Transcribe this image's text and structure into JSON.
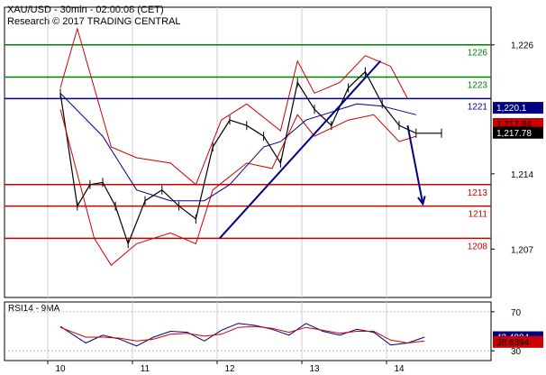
{
  "header": {
    "title": "XAU/USD - 30min - 02:00:08 (CET)",
    "subtitle": "Research © 2017 TRADING CENTRAL"
  },
  "colors": {
    "resistance": "#008000",
    "pivot": "#000080",
    "support": "#cc0000",
    "bands": "#cc0000",
    "ma": "#000080",
    "price": "#000000",
    "arrow": "#000080",
    "tag_current_bg": "#000000",
    "tag_pivot_bg": "#000080",
    "tag_sub_bg": "#cc0000"
  },
  "chart_data": [
    {
      "type": "line",
      "title": "XAU/USD - 30min",
      "x_ticks": [
        "10",
        "11",
        "12",
        "13",
        "14"
      ],
      "y_ticks": [
        1207,
        1214,
        1226
      ],
      "ylim": [
        1202.5,
        1229.5
      ],
      "levels": [
        {
          "label": "1226",
          "value": 1226,
          "kind": "resistance"
        },
        {
          "label": "1223",
          "value": 1223,
          "kind": "resistance"
        },
        {
          "label": "1221",
          "value": 1221,
          "kind": "pivot"
        },
        {
          "label": "1213",
          "value": 1213,
          "kind": "support"
        },
        {
          "label": "1211",
          "value": 1211,
          "kind": "support"
        },
        {
          "label": "1208",
          "value": 1208,
          "kind": "support"
        }
      ],
      "price_tags": [
        {
          "label": "1,220.1",
          "value": 1220.1,
          "style": "pivot"
        },
        {
          "label": "1,217.84",
          "value": 1218.6,
          "style": "sub"
        },
        {
          "label": "1,217.78",
          "value": 1217.78,
          "style": "current"
        }
      ],
      "series": [
        {
          "kind": "price",
          "x": [
            0.0,
            0.2,
            0.35,
            0.5,
            0.65,
            0.8,
            1.0,
            1.2,
            1.4,
            1.6,
            1.8,
            2.0,
            2.2,
            2.4,
            2.6,
            2.8,
            3.0,
            3.2,
            3.4,
            3.6,
            3.8,
            4.0,
            4.2,
            4.5
          ],
          "values": [
            1221.5,
            1211.0,
            1213.0,
            1213.2,
            1211.0,
            1207.5,
            1211.5,
            1212.5,
            1211.0,
            1209.8,
            1216.5,
            1219.0,
            1218.5,
            1217.5,
            1215.0,
            1222.5,
            1220.0,
            1218.5,
            1222.0,
            1223.5,
            1220.5,
            1218.5,
            1217.78,
            1217.78
          ]
        },
        {
          "kind": "upper_band",
          "x": [
            0.0,
            0.2,
            0.6,
            0.9,
            1.3,
            1.6,
            1.9,
            2.2,
            2.6,
            2.8,
            3.0,
            3.3,
            3.6,
            3.9,
            4.1
          ],
          "values": [
            1222.0,
            1227.5,
            1216.5,
            1215.5,
            1215.0,
            1213.0,
            1219.0,
            1220.5,
            1218.0,
            1224.5,
            1221.5,
            1222.5,
            1225.0,
            1224.0,
            1221.0
          ]
        },
        {
          "kind": "lower_band",
          "x": [
            0.0,
            0.4,
            0.6,
            0.9,
            1.3,
            1.6,
            1.8,
            2.2,
            2.5,
            2.8,
            3.0,
            3.4,
            3.7,
            4.0,
            4.2
          ],
          "values": [
            1220.0,
            1208.0,
            1205.5,
            1207.5,
            1208.5,
            1207.5,
            1212.5,
            1215.0,
            1214.5,
            1219.5,
            1217.5,
            1219.0,
            1219.5,
            1217.0,
            1217.5
          ]
        },
        {
          "kind": "moving_average",
          "x": [
            0.0,
            0.5,
            0.9,
            1.3,
            1.7,
            2.0,
            2.4,
            2.6,
            2.9,
            3.1,
            3.5,
            3.8,
            4.2
          ],
          "values": [
            1221.5,
            1217.5,
            1212.5,
            1211.5,
            1211.5,
            1213.0,
            1216.5,
            1217.0,
            1219.0,
            1219.5,
            1220.5,
            1220.3,
            1219.5
          ]
        }
      ],
      "annotations": [
        {
          "kind": "trendline",
          "x": [
            1.88,
            3.78
          ],
          "values": [
            1208.0,
            1224.5
          ]
        },
        {
          "kind": "arrow",
          "x": [
            4.1,
            4.28
          ],
          "values": [
            1218.5,
            1211.2
          ]
        }
      ]
    },
    {
      "type": "line",
      "title": "RSI14 - 9MA",
      "y_ticks": [
        70,
        30
      ],
      "ylim": [
        20,
        80
      ],
      "price_tags": [
        {
          "label": "43.4984",
          "value": 43.4984,
          "style": "pivot"
        },
        {
          "label": "38.6394",
          "value": 38.6394,
          "style": "sub"
        }
      ],
      "series": [
        {
          "kind": "rsi",
          "x": [
            0.0,
            0.3,
            0.5,
            0.7,
            0.9,
            1.1,
            1.3,
            1.5,
            1.7,
            1.9,
            2.1,
            2.3,
            2.5,
            2.7,
            2.9,
            3.1,
            3.3,
            3.5,
            3.7,
            3.9,
            4.1,
            4.3
          ],
          "values": [
            55,
            38,
            46,
            42,
            35,
            44,
            50,
            49,
            40,
            51,
            58,
            56,
            52,
            46,
            58,
            50,
            46,
            52,
            49,
            36,
            38,
            44
          ]
        },
        {
          "kind": "rsi_ma",
          "x": [
            0.0,
            0.3,
            0.5,
            0.7,
            0.9,
            1.1,
            1.3,
            1.5,
            1.7,
            1.9,
            2.1,
            2.3,
            2.5,
            2.7,
            2.9,
            3.1,
            3.3,
            3.5,
            3.7,
            3.9,
            4.1,
            4.3
          ],
          "values": [
            54,
            44,
            44,
            43,
            40,
            42,
            47,
            48,
            45,
            47,
            54,
            55,
            53,
            49,
            54,
            51,
            48,
            50,
            50,
            41,
            38,
            40
          ]
        }
      ]
    }
  ]
}
